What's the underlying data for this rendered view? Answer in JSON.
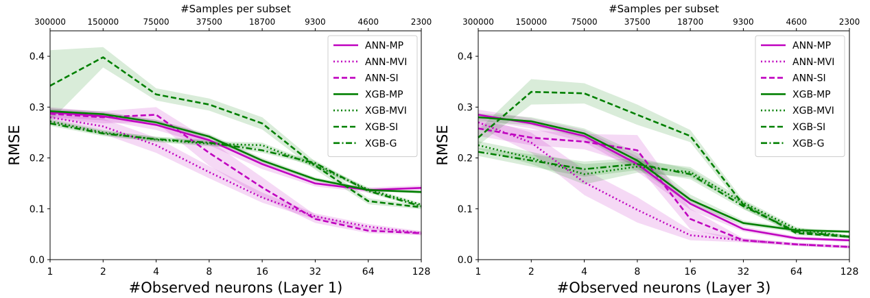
{
  "chart_data": [
    {
      "type": "line",
      "xlabel": "#Observed neurons (Layer 1)",
      "ylabel": "RMSE",
      "top_xlabel": "#Samples per subset",
      "x": [
        1,
        2,
        4,
        8,
        16,
        32,
        64,
        128
      ],
      "xticks": [
        "1",
        "2",
        "4",
        "8",
        "16",
        "32",
        "64",
        "128"
      ],
      "top_xticks": [
        "300000",
        "150000",
        "75000",
        "37500",
        "18700",
        "9300",
        "4600",
        "2300"
      ],
      "yticks": [
        "0.0",
        "0.1",
        "0.2",
        "0.3",
        "0.4"
      ],
      "ylim": [
        0.0,
        0.45
      ],
      "x_scale": "log2",
      "legend_position": "top-right",
      "series": [
        {
          "name": "ANN-MP",
          "color": "#bf00bf",
          "dash": "solid",
          "values": [
            0.29,
            0.282,
            0.265,
            0.235,
            0.188,
            0.15,
            0.137,
            0.141
          ],
          "band": [
            0.01,
            0.008,
            0.01,
            0.01,
            0.01,
            0.006,
            0.005,
            0.005
          ]
        },
        {
          "name": "ANN-MVI",
          "color": "#bf00bf",
          "dash": "dotted",
          "values": [
            0.28,
            0.262,
            0.225,
            0.172,
            0.122,
            0.085,
            0.065,
            0.052
          ],
          "band": [
            0.01,
            0.015,
            0.015,
            0.012,
            0.01,
            0.006,
            0.005,
            0.004
          ]
        },
        {
          "name": "ANN-SI",
          "color": "#bf00bf",
          "dash": "dashed",
          "values": [
            0.287,
            0.28,
            0.285,
            0.21,
            0.142,
            0.08,
            0.057,
            0.052
          ],
          "band": [
            0.01,
            0.012,
            0.015,
            0.025,
            0.02,
            0.008,
            0.005,
            0.004
          ]
        },
        {
          "name": "XGB-MP",
          "color": "#007f00",
          "dash": "solid",
          "values": [
            0.292,
            0.286,
            0.27,
            0.242,
            0.195,
            0.158,
            0.137,
            0.133
          ],
          "band": [
            0.005,
            0.005,
            0.005,
            0.005,
            0.005,
            0.004,
            0.003,
            0.003
          ]
        },
        {
          "name": "XGB-MVI",
          "color": "#007f00",
          "dash": "dotted",
          "values": [
            0.272,
            0.25,
            0.236,
            0.228,
            0.225,
            0.185,
            0.138,
            0.108
          ],
          "band": [
            0.005,
            0.005,
            0.005,
            0.005,
            0.005,
            0.005,
            0.004,
            0.003
          ]
        },
        {
          "name": "XGB-SI",
          "color": "#007f00",
          "dash": "dashed",
          "values": [
            0.342,
            0.398,
            0.325,
            0.305,
            0.268,
            0.185,
            0.115,
            0.103
          ],
          "band": [
            0.07,
            0.02,
            0.012,
            0.012,
            0.012,
            0.008,
            0.006,
            0.004
          ]
        },
        {
          "name": "XGB-G",
          "color": "#007f00",
          "dash": "dashdot",
          "values": [
            0.268,
            0.248,
            0.237,
            0.23,
            0.215,
            0.19,
            0.135,
            0.105
          ],
          "band": [
            0.005,
            0.005,
            0.005,
            0.005,
            0.005,
            0.005,
            0.004,
            0.003
          ]
        }
      ]
    },
    {
      "type": "line",
      "xlabel": "#Observed neurons (Layer 3)",
      "ylabel": "RMSE",
      "top_xlabel": "#Samples per subset",
      "x": [
        1,
        2,
        4,
        8,
        16,
        32,
        64,
        128
      ],
      "xticks": [
        "1",
        "2",
        "4",
        "8",
        "16",
        "32",
        "64",
        "128"
      ],
      "top_xticks": [
        "300000",
        "150000",
        "75000",
        "37500",
        "18700",
        "9300",
        "4600",
        "2300"
      ],
      "yticks": [
        "0.0",
        "0.1",
        "0.2",
        "0.3",
        "0.4"
      ],
      "ylim": [
        0.0,
        0.45
      ],
      "x_scale": "log2",
      "legend_position": "top-right",
      "series": [
        {
          "name": "ANN-MP",
          "color": "#bf00bf",
          "dash": "solid",
          "values": [
            0.285,
            0.268,
            0.243,
            0.188,
            0.11,
            0.06,
            0.042,
            0.038
          ],
          "band": [
            0.01,
            0.01,
            0.012,
            0.015,
            0.012,
            0.005,
            0.004,
            0.003
          ]
        },
        {
          "name": "ANN-MVI",
          "color": "#bf00bf",
          "dash": "dotted",
          "values": [
            0.27,
            0.23,
            0.152,
            0.098,
            0.048,
            0.038,
            0.03,
            0.025
          ],
          "band": [
            0.01,
            0.02,
            0.025,
            0.025,
            0.01,
            0.004,
            0.003,
            0.003
          ]
        },
        {
          "name": "ANN-SI",
          "color": "#bf00bf",
          "dash": "dashed",
          "values": [
            0.258,
            0.24,
            0.232,
            0.215,
            0.08,
            0.038,
            0.03,
            0.025
          ],
          "band": [
            0.015,
            0.015,
            0.015,
            0.03,
            0.02,
            0.004,
            0.003,
            0.003
          ]
        },
        {
          "name": "XGB-MP",
          "color": "#007f00",
          "dash": "solid",
          "values": [
            0.28,
            0.272,
            0.248,
            0.195,
            0.118,
            0.072,
            0.058,
            0.055
          ],
          "band": [
            0.008,
            0.008,
            0.01,
            0.015,
            0.01,
            0.005,
            0.004,
            0.003
          ]
        },
        {
          "name": "XGB-MVI",
          "color": "#007f00",
          "dash": "dotted",
          "values": [
            0.225,
            0.2,
            0.168,
            0.183,
            0.172,
            0.112,
            0.06,
            0.045
          ],
          "band": [
            0.008,
            0.012,
            0.02,
            0.012,
            0.01,
            0.006,
            0.004,
            0.003
          ]
        },
        {
          "name": "XGB-SI",
          "color": "#007f00",
          "dash": "dashed",
          "values": [
            0.24,
            0.33,
            0.327,
            0.285,
            0.243,
            0.108,
            0.052,
            0.045
          ],
          "band": [
            0.015,
            0.025,
            0.02,
            0.02,
            0.012,
            0.008,
            0.004,
            0.003
          ]
        },
        {
          "name": "XGB-G",
          "color": "#007f00",
          "dash": "dashdot",
          "values": [
            0.212,
            0.195,
            0.178,
            0.188,
            0.168,
            0.105,
            0.055,
            0.045
          ],
          "band": [
            0.008,
            0.012,
            0.015,
            0.012,
            0.01,
            0.006,
            0.004,
            0.003
          ]
        }
      ]
    }
  ]
}
